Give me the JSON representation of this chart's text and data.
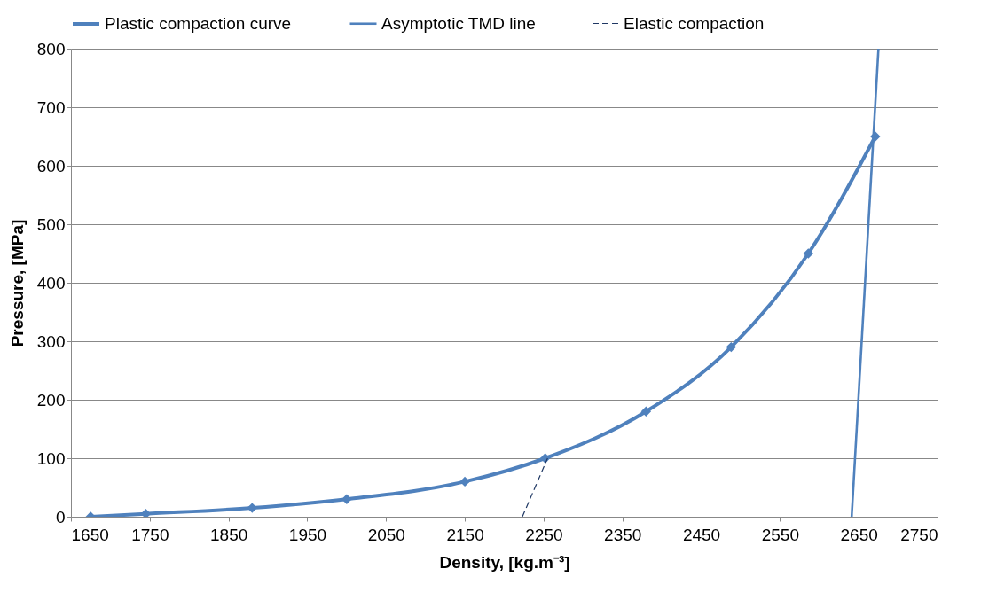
{
  "chart_data": {
    "type": "line",
    "xlabel": "Density, [kg.m⁻³]",
    "ylabel": "Pressure, [MPa]",
    "xlim": [
      1650,
      2750
    ],
    "xticks": [
      1650,
      1750,
      1850,
      1950,
      2050,
      2150,
      2250,
      2350,
      2450,
      2550,
      2650,
      2750
    ],
    "ylim": [
      0,
      800
    ],
    "yticks": [
      0,
      100,
      200,
      300,
      400,
      500,
      600,
      700,
      800
    ],
    "grid": "y",
    "legend": "top",
    "series": [
      {
        "name": "Plastic compaction curve",
        "color": "#4f81bd",
        "marker": "diamond",
        "line_style": "solid",
        "x": [
          1675,
          1745,
          1880,
          2000,
          2150,
          2252,
          2380,
          2488,
          2586,
          2671
        ],
        "values": [
          0,
          5,
          15,
          30,
          60,
          100,
          180,
          290,
          450,
          650
        ]
      },
      {
        "name": "Asymptotic TMD line",
        "color": "#4f81bd",
        "marker": "none",
        "line_style": "solid",
        "x": [
          2641,
          2675
        ],
        "values": [
          0,
          800
        ]
      },
      {
        "name": "Elastic compaction",
        "color": "#1f3864",
        "marker": "none",
        "line_style": "dashed",
        "x": [
          2223,
          2255
        ],
        "values": [
          0,
          100
        ]
      }
    ]
  }
}
